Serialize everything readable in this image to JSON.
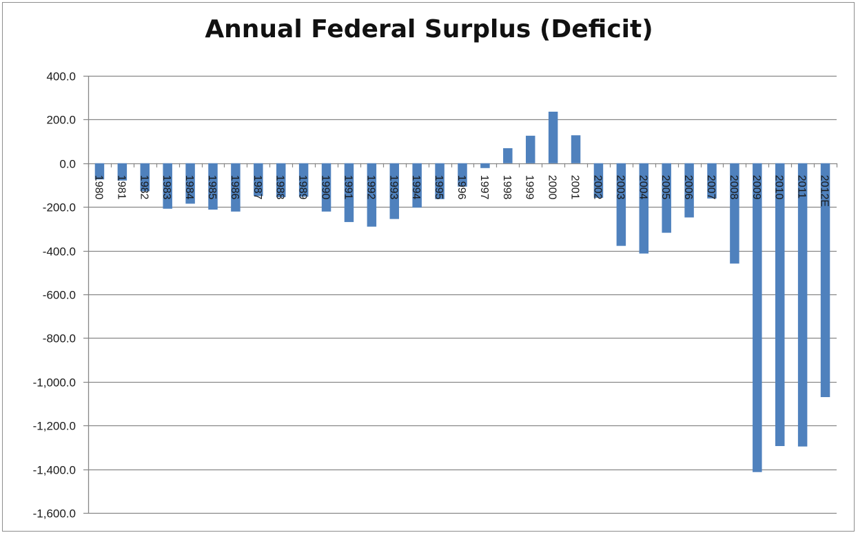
{
  "chart_data": {
    "type": "bar",
    "title": "Annual Federal Surplus (Deficit)",
    "xlabel": "",
    "ylabel": "",
    "ylim": [
      -1600,
      400
    ],
    "yticks": [
      400,
      200,
      0,
      -200,
      -400,
      -600,
      -800,
      -1000,
      -1200,
      -1400,
      -1600
    ],
    "ytick_labels": [
      "400.0",
      "200.0",
      "0.0",
      "-200.0",
      "-400.0",
      "-600.0",
      "-800.0",
      "-1,000.0",
      "-1,200.0",
      "-1,400.0",
      "-1,600.0"
    ],
    "grid": true,
    "legend": "none",
    "categories": [
      "1980",
      "1981",
      "1982",
      "1983",
      "1984",
      "1985",
      "1986",
      "1987",
      "1988",
      "1989",
      "1990",
      "1991",
      "1992",
      "1993",
      "1994",
      "1995",
      "1996",
      "1997",
      "1998",
      "1999",
      "2000",
      "2001",
      "2002",
      "2003",
      "2004",
      "2005",
      "2006",
      "2007",
      "2008",
      "2009",
      "2010",
      "2011",
      "2012E"
    ],
    "values": [
      -74,
      -79,
      -128,
      -208,
      -185,
      -212,
      -221,
      -150,
      -155,
      -153,
      -221,
      -269,
      -290,
      -255,
      -203,
      -164,
      -107,
      -22,
      69,
      126,
      236,
      128,
      -158,
      -378,
      -413,
      -318,
      -248,
      -161,
      -459,
      -1413,
      -1294,
      -1296,
      -1070
    ],
    "colors": {
      "bar": "#4f81bd",
      "grid": "#868686",
      "axis": "#868686"
    }
  }
}
